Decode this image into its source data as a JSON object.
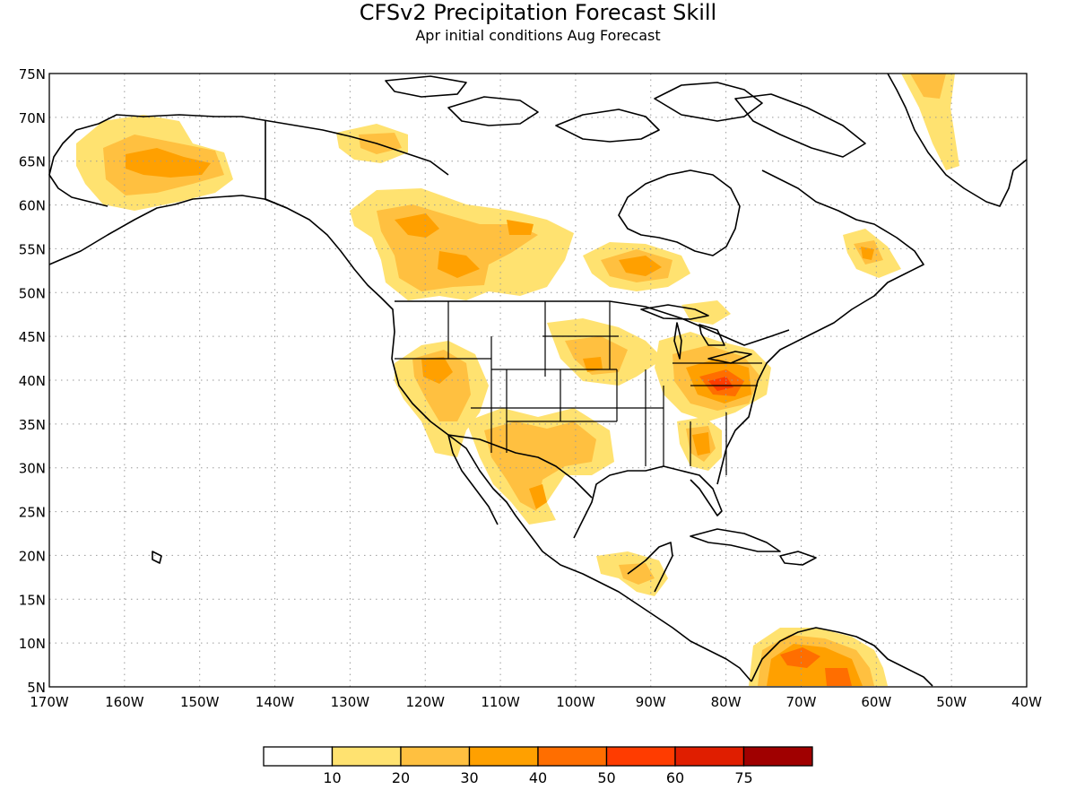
{
  "title": "CFSv2 Precipitation Forecast Skill",
  "subtitle": "Apr initial conditions  Aug Forecast",
  "lat_labels": [
    "75N",
    "70N",
    "65N",
    "60N",
    "55N",
    "50N",
    "45N",
    "40N",
    "35N",
    "30N",
    "25N",
    "20N",
    "15N",
    "10N",
    "5N"
  ],
  "lon_labels": [
    "170W",
    "160W",
    "150W",
    "140W",
    "130W",
    "120W",
    "110W",
    "100W",
    "90W",
    "80W",
    "70W",
    "60W",
    "50W",
    "40W"
  ],
  "legend": {
    "colors": [
      "#ffffff",
      "#ffe270",
      "#ffc040",
      "#ffa000",
      "#ff6e00",
      "#ff3c00",
      "#e01e00",
      "#a00000"
    ],
    "labels": [
      "10",
      "20",
      "30",
      "40",
      "50",
      "60",
      "75"
    ]
  },
  "colors": {
    "level1": "#ffe270",
    "level2": "#ffc040",
    "level3": "#ffa000",
    "level4": "#ff6e00",
    "level5": "#ff3c00",
    "coast": "#000000",
    "grid": "#9a9a9a"
  }
}
